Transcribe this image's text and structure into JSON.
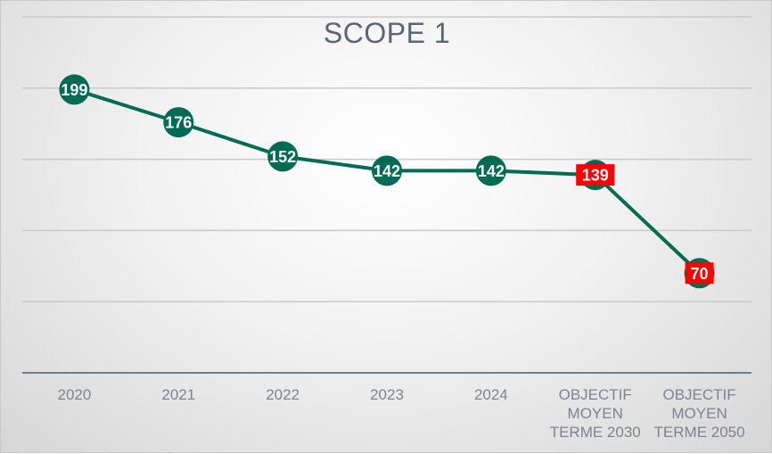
{
  "chart_data": {
    "type": "line",
    "title": "SCOPE 1",
    "xlabel": "",
    "ylabel": "",
    "categories": [
      [
        "2020"
      ],
      [
        "2021"
      ],
      [
        "2022"
      ],
      [
        "2023"
      ],
      [
        "2024"
      ],
      [
        "OBJECTIF",
        "MOYEN",
        "TERME 2030"
      ],
      [
        "OBJECTIF",
        "MOYEN",
        "TERME 2050"
      ]
    ],
    "series": [
      {
        "values": [
          199,
          176,
          152,
          142,
          142,
          139,
          70
        ],
        "labels": [
          "199",
          "176",
          "152",
          "142",
          "142",
          "139",
          "70"
        ],
        "highlight": [
          false,
          false,
          false,
          false,
          false,
          true,
          true
        ]
      }
    ],
    "ylim": [
      0,
      250
    ],
    "grid": true,
    "colors": {
      "line": "#006b54",
      "marker": "#006b54",
      "highlight_label_bg": "#ff0000",
      "gridline": "#c9c9c9",
      "axis": "#6d7f8f"
    }
  }
}
